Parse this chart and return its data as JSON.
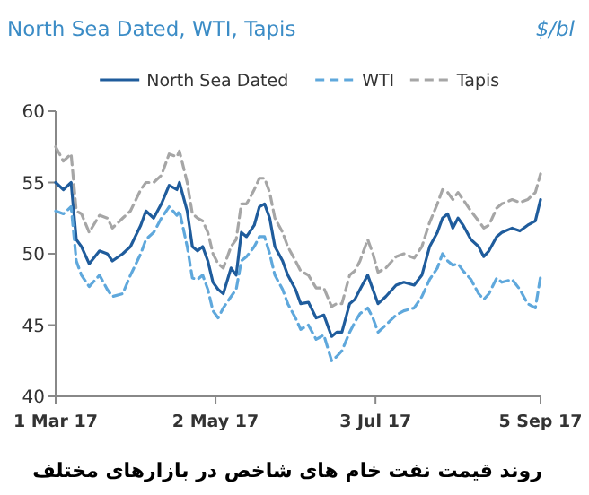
{
  "chart_data": {
    "type": "line",
    "title": "North Sea Dated, WTI, Tapis",
    "ylabel": "$/bl",
    "annotations": [
      "روند قیمت نفت خام های شاخص در بازارهای مختلف"
    ],
    "x": [
      "2017-03-01",
      "2017-03-04",
      "2017-03-07",
      "2017-03-09",
      "2017-03-11",
      "2017-03-14",
      "2017-03-18",
      "2017-03-21",
      "2017-03-23",
      "2017-03-27",
      "2017-03-30",
      "2017-04-03",
      "2017-04-05",
      "2017-04-08",
      "2017-04-11",
      "2017-04-14",
      "2017-04-17",
      "2017-04-18",
      "2017-04-21",
      "2017-04-23",
      "2017-04-25",
      "2017-04-27",
      "2017-04-29",
      "2017-05-01",
      "2017-05-03",
      "2017-05-05",
      "2017-05-08",
      "2017-05-10",
      "2017-05-12",
      "2017-05-14",
      "2017-05-17",
      "2017-05-19",
      "2017-05-21",
      "2017-05-23",
      "2017-05-25",
      "2017-05-28",
      "2017-05-30",
      "2017-06-02",
      "2017-06-04",
      "2017-06-07",
      "2017-06-10",
      "2017-06-13",
      "2017-06-16",
      "2017-06-18",
      "2017-06-20",
      "2017-06-23",
      "2017-06-25",
      "2017-06-27",
      "2017-06-30",
      "2017-07-02",
      "2017-07-04",
      "2017-07-07",
      "2017-07-11",
      "2017-07-14",
      "2017-07-18",
      "2017-07-21",
      "2017-07-24",
      "2017-07-27",
      "2017-07-29",
      "2017-07-31",
      "2017-08-02",
      "2017-08-04",
      "2017-08-06",
      "2017-08-09",
      "2017-08-12",
      "2017-08-14",
      "2017-08-16",
      "2017-08-19",
      "2017-08-21",
      "2017-08-25",
      "2017-08-28",
      "2017-08-31",
      "2017-09-03",
      "2017-09-05"
    ],
    "series": [
      {
        "name": "North Sea Dated",
        "color": "#1f5c9c",
        "line_style": "solid",
        "values": [
          55,
          54.5,
          55,
          51,
          50.5,
          49.3,
          50.2,
          50,
          49.5,
          50,
          50.5,
          52,
          53,
          52.5,
          53.5,
          54.8,
          54.5,
          55,
          53,
          50.5,
          50.2,
          50.5,
          49.5,
          48,
          47.5,
          47.2,
          49,
          48.5,
          51.5,
          51.2,
          52,
          53.3,
          53.5,
          52.5,
          50.5,
          49.5,
          48.5,
          47.5,
          46.5,
          46.6,
          45.5,
          45.7,
          44.2,
          44.5,
          44.5,
          46.5,
          46.8,
          47.5,
          48.5,
          47.5,
          46.5,
          47,
          47.8,
          48,
          47.8,
          48.5,
          50.5,
          51.5,
          52.5,
          52.8,
          51.8,
          52.5,
          52,
          51,
          50.5,
          49.8,
          50.2,
          51.2,
          51.5,
          51.8,
          51.6,
          52,
          52.3,
          53.8
        ]
      },
      {
        "name": "WTI",
        "color": "#5fa8dc",
        "line_style": "dashed",
        "values": [
          53,
          52.8,
          53.3,
          49.5,
          48.5,
          47.7,
          48.5,
          47.5,
          47,
          47.2,
          48.5,
          50,
          51,
          51.5,
          52.5,
          53.3,
          52.7,
          53,
          50.5,
          48.3,
          48.2,
          48.5,
          47.5,
          46,
          45.5,
          46.2,
          47,
          47.5,
          49.5,
          49.8,
          50.5,
          51.2,
          51.2,
          50,
          48.5,
          47.5,
          46.5,
          45.5,
          44.7,
          45,
          44,
          44.3,
          42.5,
          42.8,
          43.2,
          44.5,
          45.2,
          45.8,
          46.2,
          45.5,
          44.5,
          45,
          45.7,
          46,
          46.2,
          47,
          48.2,
          49,
          50,
          49.5,
          49.2,
          49.3,
          48.8,
          48.2,
          47.2,
          46.8,
          47.2,
          48.3,
          48,
          48.2,
          47.5,
          46.5,
          46.2,
          48.4
        ]
      },
      {
        "name": "Tapis",
        "color": "#a6a6a6",
        "line_style": "dashed",
        "values": [
          57.5,
          56.5,
          57,
          53,
          52.8,
          51.5,
          52.7,
          52.5,
          51.8,
          52.5,
          53,
          54.5,
          55,
          55,
          55.5,
          57,
          56.8,
          57.2,
          55,
          52.8,
          52.5,
          52.3,
          51.5,
          50,
          49.3,
          49,
          50.5,
          51,
          53.5,
          53.5,
          54.5,
          55.3,
          55.3,
          54.3,
          52.5,
          51.5,
          50.5,
          49.5,
          48.8,
          48.5,
          47.6,
          47.6,
          46.3,
          46.5,
          46.5,
          48.5,
          48.8,
          49.5,
          51,
          50,
          48.7,
          49,
          49.8,
          50,
          49.7,
          50.5,
          52.2,
          53.5,
          54.5,
          54.3,
          53.8,
          54.3,
          53.8,
          53,
          52.3,
          51.8,
          52,
          53.2,
          53.5,
          53.8,
          53.6,
          53.8,
          54.3,
          55.6
        ]
      }
    ],
    "xlim": [
      "2017-03-01",
      "2017-09-05"
    ],
    "xticks": [
      {
        "value": "2017-03-01",
        "label": "1 Mar 17"
      },
      {
        "value": "2017-05-02",
        "label": "2 May 17"
      },
      {
        "value": "2017-07-03",
        "label": "3 Jul 17"
      },
      {
        "value": "2017-09-05",
        "label": "5 Sep 17"
      }
    ],
    "ylim": [
      40,
      60
    ],
    "yticks": [
      40,
      45,
      50,
      55,
      60
    ],
    "grid": false,
    "legend": "top"
  }
}
